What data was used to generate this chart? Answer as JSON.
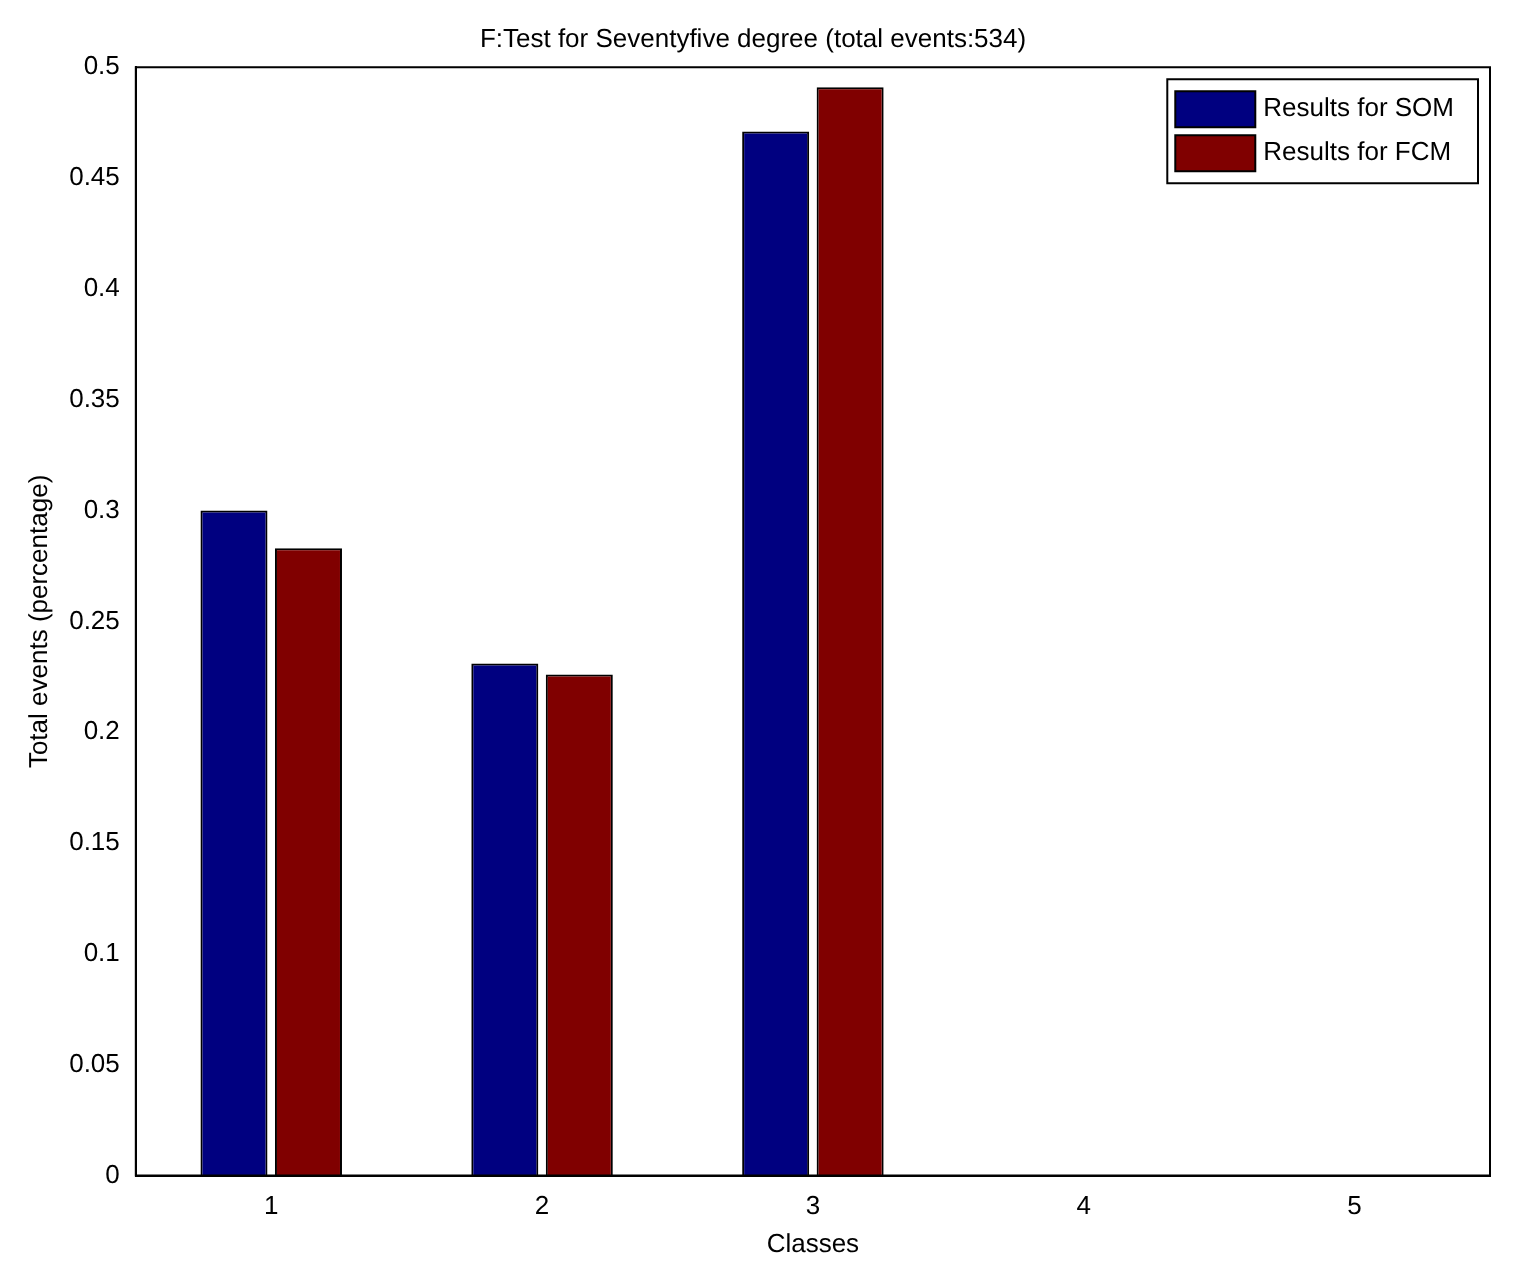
{
  "chart_data": {
    "type": "bar",
    "title": "F:Test for Seventyfive degree (total events:534)",
    "xlabel": "Classes",
    "ylabel": "Total events (percentage)",
    "categories": [
      "1",
      "2",
      "3",
      "4",
      "5"
    ],
    "series": [
      {
        "name": "Results for SOM",
        "color": "#000080",
        "values": [
          0.3,
          0.231,
          0.471,
          0,
          0
        ]
      },
      {
        "name": "Results for FCM",
        "color": "#800000",
        "values": [
          0.283,
          0.226,
          0.491,
          0,
          0
        ]
      }
    ],
    "ylim": [
      0,
      0.5
    ],
    "yticks": [
      0,
      0.05,
      0.1,
      0.15,
      0.2,
      0.25,
      0.3,
      0.35,
      0.4,
      0.45,
      0.5
    ],
    "grid": false,
    "legend": "top right"
  }
}
